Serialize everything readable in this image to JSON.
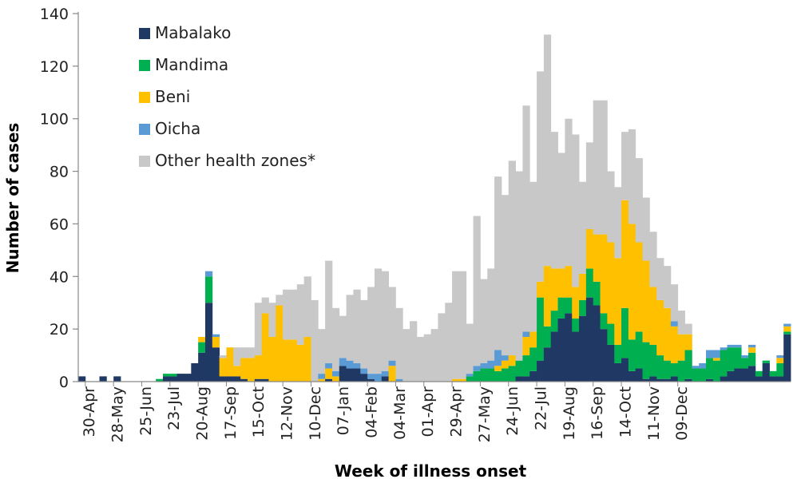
{
  "chart_data": {
    "type": "bar",
    "stacked": true,
    "xlabel": "Week of illness onset",
    "ylabel": "Number of cases",
    "ylim": [
      0,
      140
    ],
    "yticks": [
      0,
      20,
      40,
      60,
      80,
      100,
      120,
      140
    ],
    "grid": false,
    "legend_position": "top-left",
    "x_tick_labels": [
      "30-Apr",
      "28-May",
      "25-Jun",
      "23-Jul",
      "20-Aug",
      "17-Sep",
      "15-Oct",
      "12-Nov",
      "10-Dec",
      "07-Jan",
      "04-Feb",
      "04-Mar",
      "01-Apr",
      "29-Apr",
      "27-May",
      "24-Jun",
      "22-Jul",
      "19-Aug",
      "16-Sep",
      "14-Oct",
      "11-Nov",
      "09-Dec"
    ],
    "series": [
      {
        "name": "Mabalako",
        "color": "#1f3864",
        "values": [
          2,
          0,
          0,
          2,
          0,
          2,
          0,
          0,
          0,
          0,
          0,
          0,
          2,
          2,
          3,
          3,
          7,
          11,
          30,
          13,
          2,
          2,
          2,
          1,
          0,
          1,
          1,
          0,
          0,
          0,
          0,
          0,
          0,
          0,
          0,
          1,
          0,
          6,
          5,
          5,
          3,
          1,
          0,
          2,
          0,
          0,
          0,
          0,
          0,
          0,
          0,
          0,
          0,
          0,
          0,
          0,
          0,
          0,
          0,
          0,
          0,
          0,
          2,
          2,
          4,
          8,
          13,
          19,
          24,
          26,
          19,
          25,
          32,
          29,
          20,
          14,
          7,
          9,
          4,
          5,
          1,
          2,
          1,
          1,
          2,
          0,
          1,
          0,
          0,
          1,
          0,
          2,
          4,
          5,
          5,
          6,
          2,
          7,
          2,
          2,
          18
        ]
      },
      {
        "name": "Mandima",
        "color": "#00b050",
        "values": [
          0,
          0,
          0,
          0,
          0,
          0,
          0,
          0,
          0,
          0,
          0,
          1,
          1,
          1,
          0,
          0,
          0,
          4,
          10,
          0,
          0,
          0,
          0,
          0,
          0,
          0,
          0,
          0,
          0,
          0,
          0,
          0,
          0,
          0,
          0,
          0,
          0,
          0,
          0,
          0,
          0,
          0,
          0,
          0,
          0,
          0,
          0,
          0,
          0,
          0,
          0,
          0,
          0,
          0,
          0,
          2,
          4,
          5,
          5,
          4,
          5,
          6,
          6,
          8,
          9,
          24,
          8,
          8,
          8,
          6,
          5,
          6,
          11,
          9,
          6,
          8,
          7,
          19,
          12,
          14,
          14,
          12,
          9,
          7,
          5,
          8,
          11,
          5,
          5,
          8,
          8,
          10,
          9,
          8,
          4,
          5,
          2,
          1,
          2,
          5,
          1
        ]
      },
      {
        "name": "Beni",
        "color": "#ffc000",
        "values": [
          0,
          0,
          0,
          0,
          0,
          0,
          0,
          0,
          0,
          0,
          0,
          0,
          0,
          0,
          0,
          0,
          0,
          2,
          0,
          4,
          7,
          11,
          4,
          8,
          9,
          9,
          25,
          17,
          29,
          16,
          16,
          14,
          17,
          0,
          1,
          4,
          2,
          0,
          0,
          0,
          0,
          0,
          0,
          0,
          6,
          0,
          0,
          0,
          0,
          0,
          0,
          0,
          0,
          1,
          1,
          0,
          0,
          0,
          0,
          2,
          3,
          4,
          0,
          7,
          6,
          6,
          23,
          16,
          11,
          12,
          12,
          10,
          15,
          18,
          30,
          31,
          33,
          41,
          44,
          34,
          31,
          22,
          21,
          20,
          14,
          10,
          6,
          0,
          0,
          0,
          1,
          0,
          0,
          0,
          0,
          2,
          0,
          0,
          0,
          2,
          2
        ]
      },
      {
        "name": "Oicha",
        "color": "#5b9bd5",
        "values": [
          0,
          0,
          0,
          0,
          0,
          0,
          0,
          0,
          0,
          0,
          0,
          0,
          0,
          0,
          0,
          0,
          0,
          0,
          2,
          1,
          0,
          0,
          0,
          0,
          0,
          0,
          0,
          0,
          0,
          0,
          0,
          0,
          0,
          0,
          2,
          2,
          2,
          3,
          3,
          2,
          2,
          2,
          3,
          2,
          2,
          1,
          0,
          0,
          0,
          0,
          0,
          0,
          0,
          0,
          0,
          1,
          2,
          2,
          3,
          6,
          2,
          0,
          0,
          2,
          0,
          0,
          0,
          0,
          0,
          0,
          0,
          0,
          0,
          0,
          0,
          0,
          0,
          0,
          0,
          0,
          0,
          0,
          0,
          0,
          2,
          0,
          0,
          1,
          2,
          3,
          3,
          1,
          1,
          1,
          1,
          1,
          0,
          0,
          0,
          1,
          1
        ]
      },
      {
        "name": "Other health zones*",
        "color": "#c8c8c8",
        "values": [
          0,
          0,
          0,
          0,
          0,
          0,
          0,
          0,
          0,
          0,
          0,
          0,
          0,
          0,
          0,
          0,
          0,
          0,
          0,
          0,
          1,
          0,
          7,
          4,
          4,
          20,
          6,
          13,
          4,
          19,
          19,
          23,
          23,
          31,
          17,
          39,
          24,
          16,
          25,
          28,
          26,
          33,
          40,
          38,
          28,
          27,
          20,
          23,
          17,
          18,
          20,
          26,
          30,
          41,
          41,
          19,
          57,
          32,
          35,
          66,
          61,
          74,
          72,
          86,
          57,
          80,
          88,
          52,
          44,
          56,
          58,
          35,
          33,
          51,
          51,
          27,
          27,
          26,
          36,
          32,
          24,
          21,
          16,
          16,
          14,
          9,
          4,
          0,
          0,
          0,
          0,
          0,
          0,
          0,
          0,
          0,
          0,
          0,
          0,
          0,
          0
        ]
      }
    ]
  }
}
